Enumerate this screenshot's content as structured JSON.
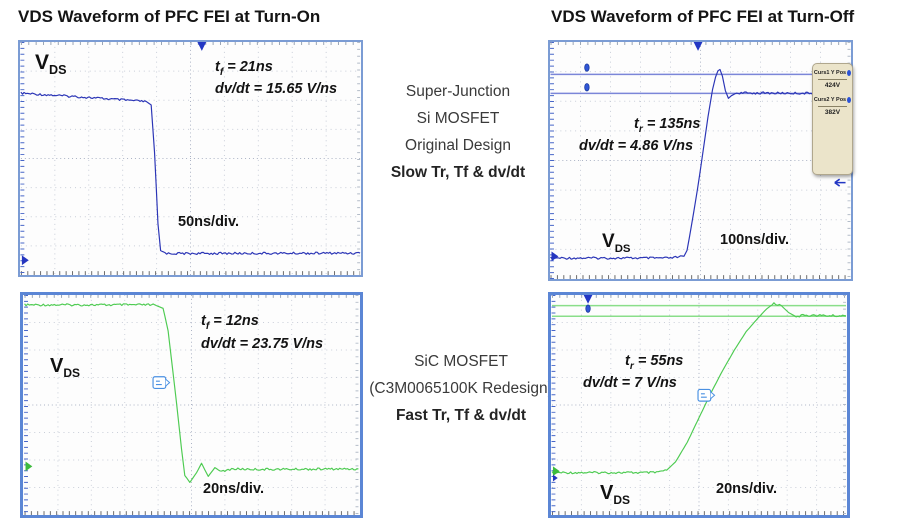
{
  "titles": {
    "left": "VDS Waveform of PFC FEI at Turn-On",
    "right": "VDS Waveform of PFC FEI at Turn-Off"
  },
  "mid_labels": {
    "top": {
      "line1": "Super-Junction",
      "line2": "Si MOSFET",
      "line3": "Original Design",
      "bold_line": "Slow Tr, Tf & dv/dt"
    },
    "bottom": {
      "line1": "SiC MOSFET",
      "line2": "(C3M0065100K Redesign)",
      "bold_line": "Fast Tr, Tf & dv/dt"
    }
  },
  "chart_data": [
    {
      "id": "sj-turn-on",
      "type": "line",
      "title": "Super-Junction Si MOSFET VDS at Turn-On",
      "timebase_label": "50ns/div.",
      "time_per_div_ns": 50,
      "divisions_x": 10,
      "x_unit": "ns",
      "y_unit": "V",
      "xlim": [
        0,
        500
      ],
      "trace_color": "#2b35b6",
      "fall_time_ns": 21,
      "dvdt_v_per_ns": 15.65,
      "labels": {
        "vds_main": "V",
        "vds_sub": "DS",
        "t_main": "t",
        "t_sub": "f",
        "t_rest": " = 21ns",
        "dvdt": "dv/dt = 15.65 V/ns"
      },
      "points": [
        [
          0,
          390
        ],
        [
          80,
          382
        ],
        [
          150,
          374
        ],
        [
          185,
          370
        ],
        [
          192,
          362
        ],
        [
          197,
          250
        ],
        [
          202,
          80
        ],
        [
          206,
          16
        ],
        [
          215,
          9
        ],
        [
          500,
          10
        ]
      ]
    },
    {
      "id": "sj-turn-off",
      "type": "line",
      "title": "Super-Junction Si MOSFET VDS at Turn-Off",
      "timebase_label": "100ns/div.",
      "time_per_div_ns": 100,
      "divisions_x": 10,
      "x_unit": "ns",
      "y_unit": "V",
      "xlim": [
        0,
        1000
      ],
      "trace_color": "#2b35b6",
      "rise_time_ns": 135,
      "dvdt_v_per_ns": 4.86,
      "cursor_values_v": [
        424,
        382
      ],
      "labels": {
        "vds_main": "V",
        "vds_sub": "DS",
        "t_main": "t",
        "t_sub": "r",
        "t_rest": " = 135ns",
        "dvdt": "dv/dt = 4.86 V/ns"
      },
      "readout": {
        "rows": [
          {
            "label": "Curs1 Y Pos",
            "value": "424V"
          },
          {
            "label": "Curs2 Y Pos",
            "value": "382V"
          }
        ]
      },
      "points": [
        [
          0,
          18
        ],
        [
          400,
          18
        ],
        [
          445,
          22
        ],
        [
          455,
          35
        ],
        [
          470,
          90
        ],
        [
          490,
          170
        ],
        [
          510,
          260
        ],
        [
          525,
          330
        ],
        [
          540,
          390
        ],
        [
          550,
          418
        ],
        [
          558,
          432
        ],
        [
          565,
          435
        ],
        [
          573,
          420
        ],
        [
          583,
          388
        ],
        [
          593,
          371
        ],
        [
          603,
          377
        ],
        [
          620,
          383
        ],
        [
          1000,
          382
        ]
      ]
    },
    {
      "id": "sic-turn-on",
      "type": "line",
      "title": "SiC MOSFET (C3M0065100K) VDS at Turn-On",
      "timebase_label": "20ns/div.",
      "time_per_div_ns": 20,
      "divisions_x": 10,
      "x_unit": "ns",
      "y_unit": "V",
      "xlim": [
        0,
        200
      ],
      "trace_color": "#4ecb52",
      "fall_time_ns": 12,
      "dvdt_v_per_ns": 23.75,
      "labels": {
        "vds_main": "V",
        "vds_sub": "DS",
        "t_main": "t",
        "t_sub": "f",
        "t_rest": " = 12ns",
        "dvdt": "dv/dt = 23.75 V/ns"
      },
      "points": [
        [
          0,
          380
        ],
        [
          78,
          380
        ],
        [
          83,
          372
        ],
        [
          86,
          320
        ],
        [
          90,
          190
        ],
        [
          94,
          50
        ],
        [
          96,
          -12
        ],
        [
          99,
          -28
        ],
        [
          103,
          -6
        ],
        [
          106,
          16
        ],
        [
          110,
          -14
        ],
        [
          114,
          6
        ],
        [
          118,
          -4
        ],
        [
          124,
          3
        ],
        [
          140,
          2
        ],
        [
          200,
          3
        ]
      ]
    },
    {
      "id": "sic-turn-off",
      "type": "line",
      "title": "SiC MOSFET (C3M0065100K) VDS at Turn-Off",
      "timebase_label": "20ns/div.",
      "time_per_div_ns": 20,
      "divisions_x": 10,
      "x_unit": "ns",
      "y_unit": "V",
      "xlim": [
        0,
        200
      ],
      "trace_color": "#4ecb52",
      "rise_time_ns": 55,
      "dvdt_v_per_ns": 7,
      "cursor_values_v": [
        414,
        388
      ],
      "labels": {
        "vds_main": "V",
        "vds_sub": "DS",
        "t_main": "t",
        "t_sub": "r",
        "t_rest": " = 55ns",
        "dvdt": "dv/dt = 7 V/ns"
      },
      "points": [
        [
          0,
          6
        ],
        [
          70,
          6
        ],
        [
          78,
          12
        ],
        [
          84,
          32
        ],
        [
          92,
          80
        ],
        [
          100,
          140
        ],
        [
          108,
          200
        ],
        [
          116,
          255
        ],
        [
          124,
          305
        ],
        [
          132,
          350
        ],
        [
          140,
          383
        ],
        [
          146,
          406
        ],
        [
          151,
          419
        ],
        [
          156,
          414
        ],
        [
          161,
          397
        ],
        [
          166,
          387
        ],
        [
          172,
          391
        ],
        [
          180,
          390
        ],
        [
          200,
          389
        ]
      ]
    }
  ]
}
